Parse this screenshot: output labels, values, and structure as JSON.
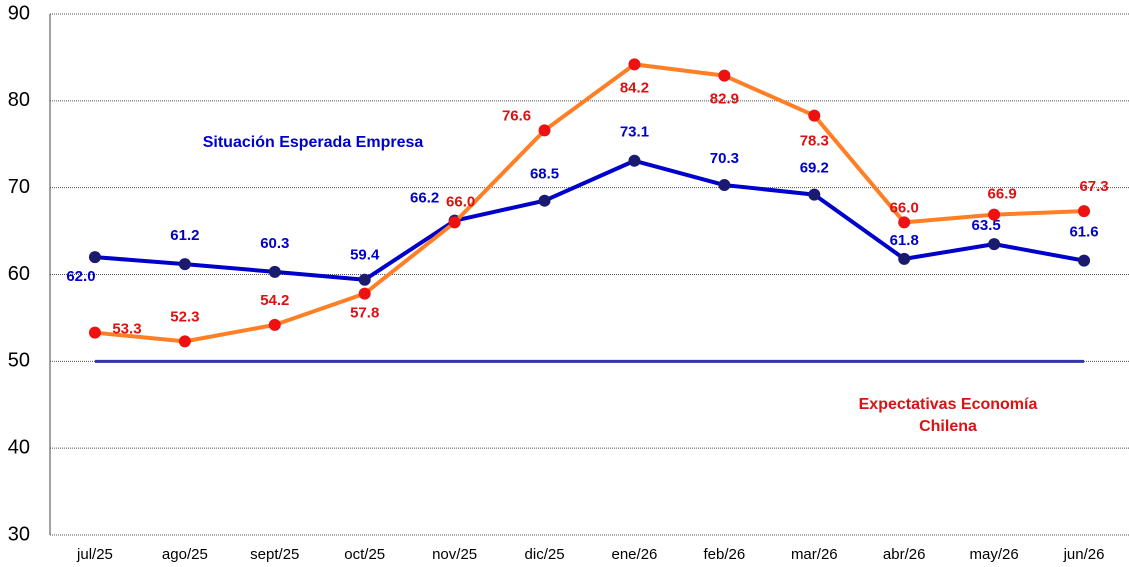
{
  "chart_data": {
    "type": "line",
    "categories": [
      "jul/25",
      "ago/25",
      "sept/25",
      "oct/25",
      "nov/25",
      "dic/25",
      "ene/26",
      "feb/26",
      "mar/26",
      "abr/26",
      "may/26",
      "jun/26"
    ],
    "series": [
      {
        "name": "Situación Esperada Empresa",
        "color": "#0000cc",
        "marker_color": "#1a1a6e",
        "label_color": "#0000cc",
        "values": [
          62.0,
          61.2,
          60.3,
          59.4,
          66.2,
          68.5,
          73.1,
          70.3,
          69.2,
          61.8,
          63.5,
          61.6
        ],
        "value_labels": [
          "62.0",
          "61.2",
          "60.3",
          "59.4",
          "66.2",
          "68.5",
          "73.1",
          "70.3",
          "69.2",
          "61.8",
          "63.5",
          "61.6"
        ]
      },
      {
        "name": "Expectativas Economía Chilena",
        "name_lines": [
          "Expectativas Economía",
          "Chilena"
        ],
        "color": "#ff7f27",
        "marker_color": "#ee1111",
        "label_color": "#dd1111",
        "values": [
          53.3,
          52.3,
          54.2,
          57.8,
          66.0,
          76.6,
          84.2,
          82.9,
          78.3,
          66.0,
          66.9,
          67.3
        ],
        "value_labels": [
          "53.3",
          "52.3",
          "54.2",
          "57.8",
          "66.0",
          "76.6",
          "84.2",
          "82.9",
          "78.3",
          "66.0",
          "66.9",
          "67.3"
        ]
      }
    ],
    "reference_line": {
      "value": 50,
      "color": "#3333aa"
    },
    "ylim": [
      30,
      90
    ],
    "yticks": [
      30,
      40,
      50,
      60,
      70,
      80,
      90
    ],
    "grid": true
  }
}
